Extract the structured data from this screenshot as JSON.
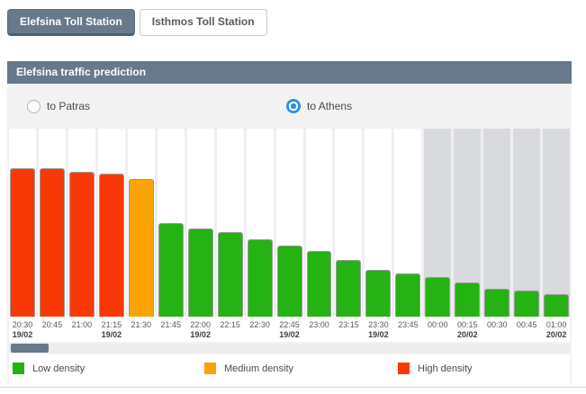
{
  "tabs": [
    {
      "label": "Elefsina Toll Station",
      "active": true
    },
    {
      "label": "Isthmos Toll Station",
      "active": false
    }
  ],
  "panel": {
    "title": "Elefsina traffic prediction"
  },
  "directions": {
    "options": [
      {
        "label": "to Patras",
        "selected": false
      },
      {
        "label": "to Athens",
        "selected": true
      }
    ]
  },
  "chart_data": {
    "type": "bar",
    "x": [
      "20:30",
      "20:45",
      "21:00",
      "21:15",
      "21:30",
      "21:45",
      "22:00",
      "22:15",
      "22:30",
      "22:45",
      "23:00",
      "23:15",
      "23:30",
      "23:45",
      "00:00",
      "00:15",
      "00:30",
      "00:45",
      "01:00"
    ],
    "date_labels": [
      "19/02",
      "",
      "",
      "19/02",
      "",
      "",
      "19/02",
      "",
      "",
      "19/02",
      "",
      "",
      "19/02",
      "",
      "",
      "20/02",
      "",
      "",
      "20/02"
    ],
    "values_pct": [
      79,
      79,
      77,
      76,
      73,
      50,
      47,
      45,
      41,
      38,
      35,
      30,
      25,
      23,
      21,
      18,
      15,
      14,
      12
    ],
    "density": [
      "high",
      "high",
      "high",
      "high",
      "medium",
      "low",
      "low",
      "low",
      "low",
      "low",
      "low",
      "low",
      "low",
      "low",
      "low",
      "low",
      "low",
      "low",
      "low"
    ],
    "future_start_index": 14,
    "ylim": [
      0,
      100
    ],
    "grid": "vertical-columns",
    "legend_position": "bottom",
    "colors": {
      "low": "#25b213",
      "medium": "#faa307",
      "high": "#f93905"
    },
    "past_column_color": "#ffffff",
    "future_column_color": "#d8dade"
  },
  "legend": [
    {
      "label": "Low density",
      "color": "#25b213"
    },
    {
      "label": "Medium density",
      "color": "#faa307"
    },
    {
      "label": "High density",
      "color": "#f93905"
    }
  ],
  "scrollbar": {
    "thumb_color": "#67798b"
  },
  "colors": {
    "accent_slate": "#67798b",
    "radio_selected_blue": "#2a8fe8",
    "body_bg": "#f2f2f2"
  }
}
